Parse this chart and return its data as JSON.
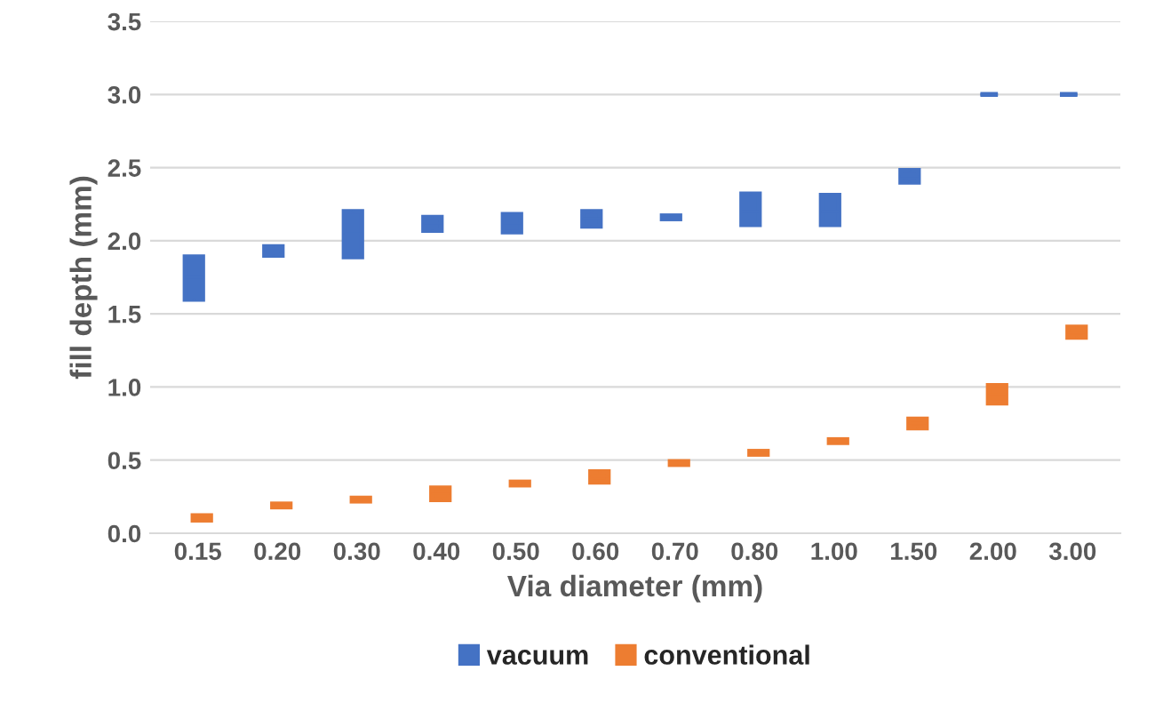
{
  "chart_data": {
    "type": "box",
    "xlabel": "Via diameter (mm)",
    "ylabel": "fill depth (mm)",
    "categories": [
      "0.15",
      "0.20",
      "0.30",
      "0.40",
      "0.50",
      "0.60",
      "0.70",
      "0.80",
      "1.00",
      "1.50",
      "2.00",
      "3.00"
    ],
    "ylim": [
      0,
      3.5
    ],
    "yticks": [
      {
        "value": 0,
        "label": "0.0"
      },
      {
        "value": 0.5,
        "label": "0.5"
      },
      {
        "value": 1,
        "label": "1.0"
      },
      {
        "value": 1.5,
        "label": "1.5"
      },
      {
        "value": 2,
        "label": "2.0"
      },
      {
        "value": 2.5,
        "label": "2.5"
      },
      {
        "value": 3,
        "label": "3.0"
      },
      {
        "value": 3.5,
        "label": "3.5"
      }
    ],
    "grid": "y",
    "legend": "bottom",
    "series": [
      {
        "name": "vacuum",
        "color": "#4472c4",
        "boxes": [
          {
            "low": 1.6,
            "q1": 1.6,
            "median": 1.75,
            "q3": 1.89,
            "high": 1.89
          },
          {
            "low": 1.9,
            "q1": 1.9,
            "median": 1.93,
            "q3": 1.96,
            "high": 1.96
          },
          {
            "low": 1.89,
            "q1": 1.89,
            "median": 2.05,
            "q3": 2.2,
            "high": 2.2
          },
          {
            "low": 2.07,
            "q1": 2.07,
            "median": 2.12,
            "q3": 2.16,
            "high": 2.16
          },
          {
            "low": 2.06,
            "q1": 2.06,
            "median": 2.12,
            "q3": 2.18,
            "high": 2.18
          },
          {
            "low": 2.1,
            "q1": 2.1,
            "median": 2.15,
            "q3": 2.2,
            "high": 2.2
          },
          {
            "low": 2.15,
            "q1": 2.15,
            "median": 2.16,
            "q3": 2.17,
            "high": 2.17
          },
          {
            "low": 2.11,
            "q1": 2.11,
            "median": 2.2,
            "q3": 2.32,
            "high": 2.32
          },
          {
            "low": 2.11,
            "q1": 2.11,
            "median": 2.2,
            "q3": 2.31,
            "high": 2.31
          },
          {
            "low": 2.4,
            "q1": 2.4,
            "median": 2.44,
            "q3": 2.48,
            "high": 2.48
          },
          {
            "low": 3.0,
            "q1": 3.0,
            "median": 3.0,
            "q3": 3.0,
            "high": 3.0
          },
          {
            "low": 3.0,
            "q1": 3.0,
            "median": 3.0,
            "q3": 3.0,
            "high": 3.0
          }
        ]
      },
      {
        "name": "conventional",
        "color": "#ed7d31",
        "boxes": [
          {
            "low": 0.09,
            "q1": 0.09,
            "median": 0.1,
            "q3": 0.12,
            "high": 0.12
          },
          {
            "low": 0.18,
            "q1": 0.18,
            "median": 0.19,
            "q3": 0.2,
            "high": 0.2
          },
          {
            "low": 0.22,
            "q1": 0.22,
            "median": 0.23,
            "q3": 0.24,
            "high": 0.24
          },
          {
            "low": 0.23,
            "q1": 0.23,
            "median": 0.27,
            "q3": 0.31,
            "high": 0.31
          },
          {
            "low": 0.33,
            "q1": 0.33,
            "median": 0.34,
            "q3": 0.35,
            "high": 0.35
          },
          {
            "low": 0.35,
            "q1": 0.35,
            "median": 0.39,
            "q3": 0.42,
            "high": 0.42
          },
          {
            "low": 0.47,
            "q1": 0.47,
            "median": 0.48,
            "q3": 0.49,
            "high": 0.49
          },
          {
            "low": 0.54,
            "q1": 0.54,
            "median": 0.55,
            "q3": 0.56,
            "high": 0.56
          },
          {
            "low": 0.62,
            "q1": 0.62,
            "median": 0.63,
            "q3": 0.64,
            "high": 0.64
          },
          {
            "low": 0.72,
            "q1": 0.72,
            "median": 0.75,
            "q3": 0.78,
            "high": 0.78
          },
          {
            "low": 0.89,
            "q1": 0.89,
            "median": 0.95,
            "q3": 1.01,
            "high": 1.01
          },
          {
            "low": 1.34,
            "q1": 1.34,
            "median": 1.37,
            "q3": 1.41,
            "high": 1.41
          }
        ]
      }
    ]
  }
}
